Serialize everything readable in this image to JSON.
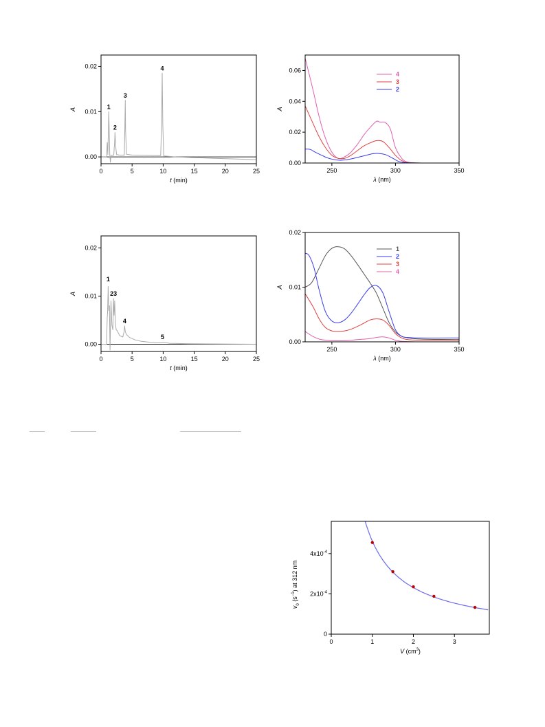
{
  "colors": {
    "axis": "#000000",
    "chromatogram": "#aaaaaa",
    "baseline": "#222222",
    "pink": "#e060b0",
    "red": "#e04040",
    "blue": "#3a3aee",
    "grey": "#555555",
    "fit": "#6b6bee",
    "marker": "#c00000"
  },
  "chart_data": [
    {
      "type": "line",
      "id": "chromatogram-top",
      "xlabel_var": "t",
      "xlabel_unit": "(min)",
      "ylabel": "A",
      "xlim": [
        0,
        25
      ],
      "ylim": [
        -0.0015,
        0.0225
      ],
      "xticks": [
        "0",
        "5",
        "10",
        "15",
        "20",
        "25"
      ],
      "yticks": [
        "0.00",
        "0.01",
        "0.02"
      ],
      "peaks": [
        {
          "label": "1",
          "t": 1.25,
          "A": 0.01
        },
        {
          "label": "2",
          "t": 2.25,
          "A": 0.0054
        },
        {
          "label": "3",
          "t": 3.9,
          "A": 0.0125
        },
        {
          "label": "4",
          "t": 9.85,
          "A": 0.0185
        }
      ],
      "series": [
        {
          "values_x": [
            0.0,
            0.9,
            1.0,
            1.1,
            1.25,
            1.4,
            1.5,
            1.6,
            2.05,
            2.2,
            2.25,
            2.35,
            2.5,
            3.0,
            3.75,
            3.85,
            3.9,
            3.95,
            4.1,
            5.0,
            9.6,
            9.75,
            9.85,
            9.95,
            10.1,
            12.0,
            18.0,
            25.0
          ],
          "values_y": [
            0.0,
            0.0,
            0.0032,
            0.0005,
            0.01,
            0.0006,
            -0.0012,
            0.0003,
            0.0004,
            0.0035,
            0.0054,
            0.0025,
            0.0005,
            0.0004,
            0.0004,
            0.008,
            0.0125,
            0.006,
            0.0006,
            0.0004,
            0.0003,
            0.007,
            0.0185,
            0.007,
            0.0002,
            0.0,
            -0.0003,
            -0.0006
          ]
        }
      ]
    },
    {
      "type": "line",
      "id": "spectra-top",
      "xlabel_var": "λ",
      "xlabel_unit": "(nm)",
      "ylabel": "A",
      "xlim": [
        229,
        350
      ],
      "ylim": [
        0,
        0.07
      ],
      "xticks": [
        "250",
        "300",
        "350"
      ],
      "yticks": [
        "0.00",
        "0.02",
        "0.04",
        "0.06"
      ],
      "legend": [
        "4",
        "3",
        "2"
      ],
      "series": [
        {
          "name": "4",
          "color": "pink",
          "x": [
            229,
            235,
            240,
            245,
            250,
            255,
            260,
            265,
            270,
            275,
            280,
            285,
            288,
            292,
            296,
            300,
            305,
            310,
            320,
            350
          ],
          "y": [
            0.068,
            0.048,
            0.03,
            0.016,
            0.007,
            0.003,
            0.004,
            0.007,
            0.012,
            0.018,
            0.023,
            0.027,
            0.0265,
            0.0262,
            0.022,
            0.01,
            0.003,
            0.0005,
            0.0,
            0.0
          ]
        },
        {
          "name": "3",
          "color": "red",
          "x": [
            229,
            235,
            240,
            245,
            250,
            255,
            260,
            265,
            270,
            275,
            280,
            285,
            290,
            295,
            300,
            305,
            310,
            320,
            350
          ],
          "y": [
            0.037,
            0.026,
            0.017,
            0.01,
            0.005,
            0.003,
            0.003,
            0.005,
            0.008,
            0.011,
            0.013,
            0.0145,
            0.014,
            0.01,
            0.005,
            0.0015,
            0.0003,
            0.0,
            0.0
          ]
        },
        {
          "name": "2",
          "color": "blue",
          "x": [
            229,
            233,
            237,
            242,
            247,
            252,
            257,
            262,
            267,
            272,
            277,
            282,
            287,
            292,
            297,
            302,
            307,
            320,
            350
          ],
          "y": [
            0.009,
            0.0088,
            0.007,
            0.005,
            0.0032,
            0.0022,
            0.0018,
            0.0022,
            0.003,
            0.004,
            0.005,
            0.006,
            0.0062,
            0.0055,
            0.0035,
            0.0012,
            0.0003,
            0.0,
            0.0
          ]
        }
      ]
    },
    {
      "type": "line",
      "id": "chromatogram-bottom",
      "xlabel_var": "t",
      "xlabel_unit": "(min)",
      "ylabel": "A",
      "xlim": [
        0,
        25
      ],
      "ylim": [
        -0.0015,
        0.0225
      ],
      "xticks": [
        "0",
        "5",
        "10",
        "15",
        "20",
        "25"
      ],
      "yticks": [
        "0.00",
        "0.01",
        "0.02"
      ],
      "peaks": [
        {
          "label": "1",
          "t": 1.15,
          "A": 0.0125
        },
        {
          "label": "23",
          "t": 2.0,
          "A": 0.0095
        },
        {
          "label": "4",
          "t": 3.8,
          "A": 0.0038
        },
        {
          "label": "5",
          "t": 9.9,
          "A": 0.0005
        }
      ],
      "series": [
        {
          "values_x": [
            0.0,
            0.9,
            1.0,
            1.05,
            1.15,
            1.25,
            1.35,
            1.45,
            1.6,
            1.75,
            1.9,
            2.0,
            2.1,
            2.2,
            2.3,
            2.45,
            2.6,
            3.0,
            3.5,
            3.7,
            3.8,
            3.9,
            4.1,
            4.6,
            5.5,
            6.5,
            8.0,
            9.5,
            10.0,
            11.0,
            14.0,
            25.0
          ],
          "values_y": [
            0.0,
            0.0,
            0.0055,
            0.0065,
            0.012,
            0.007,
            0.008,
            -0.0012,
            0.009,
            0.004,
            0.003,
            0.0095,
            0.006,
            0.009,
            0.0045,
            0.003,
            0.0028,
            0.0018,
            0.0015,
            0.0025,
            0.0038,
            0.0026,
            0.002,
            0.0014,
            0.0009,
            0.0006,
            0.0004,
            0.0003,
            0.0004,
            0.0002,
            0.0001,
            0.0
          ]
        }
      ]
    },
    {
      "type": "line",
      "id": "spectra-bottom",
      "xlabel_var": "λ",
      "xlabel_unit": "(nm)",
      "ylabel": "A",
      "xlim": [
        229,
        350
      ],
      "ylim": [
        0,
        0.02
      ],
      "xticks": [
        "250",
        "300",
        "350"
      ],
      "yticks": [
        "0.00",
        "0.01",
        "0.02"
      ],
      "legend": [
        "1",
        "2",
        "3",
        "4"
      ],
      "series": [
        {
          "name": "1",
          "color": "grey",
          "x": [
            229,
            234,
            240,
            245,
            250,
            255,
            260,
            265,
            270,
            275,
            280,
            285,
            290,
            295,
            300,
            305,
            310,
            320,
            350
          ],
          "y": [
            0.01,
            0.0108,
            0.0135,
            0.0158,
            0.0171,
            0.0174,
            0.017,
            0.0158,
            0.0142,
            0.0125,
            0.0108,
            0.0089,
            0.0062,
            0.0035,
            0.0018,
            0.001,
            0.0007,
            0.0005,
            0.0004
          ]
        },
        {
          "name": "2",
          "color": "blue",
          "x": [
            229,
            232,
            236,
            240,
            245,
            250,
            255,
            260,
            265,
            270,
            275,
            280,
            285,
            290,
            295,
            300,
            305,
            310,
            320,
            350
          ],
          "y": [
            0.0162,
            0.0158,
            0.0135,
            0.0095,
            0.0055,
            0.0038,
            0.0035,
            0.004,
            0.0052,
            0.0068,
            0.0085,
            0.0099,
            0.0103,
            0.009,
            0.0055,
            0.0022,
            0.001,
            0.0008,
            0.0007,
            0.0007
          ]
        },
        {
          "name": "3",
          "color": "red",
          "x": [
            229,
            235,
            240,
            245,
            250,
            255,
            260,
            265,
            270,
            275,
            280,
            285,
            290,
            295,
            300,
            305,
            310,
            320,
            350
          ],
          "y": [
            0.0088,
            0.0065,
            0.0042,
            0.0026,
            0.002,
            0.0019,
            0.002,
            0.0023,
            0.0028,
            0.0034,
            0.004,
            0.0042,
            0.004,
            0.003,
            0.0015,
            0.0007,
            0.0004,
            0.0003,
            0.0003
          ]
        },
        {
          "name": "4",
          "color": "pink",
          "x": [
            229,
            235,
            240,
            245,
            250,
            260,
            270,
            280,
            285,
            290,
            295,
            300,
            305,
            320,
            350
          ],
          "y": [
            0.0019,
            0.001,
            0.0005,
            0.0003,
            0.0002,
            0.0002,
            0.0004,
            0.0006,
            0.0008,
            0.0009,
            0.0007,
            0.0003,
            0.0001,
            0.0,
            0.0
          ]
        }
      ]
    },
    {
      "type": "scatter",
      "id": "rate-vs-volume",
      "xlabel_var": "V",
      "xlabel_unit": "(cm",
      "xlabel_sup": "3",
      "xlabel_close": ")",
      "ylabel_var": "v",
      "ylabel_sub": "0",
      "ylabel_mid": " (s",
      "ylabel_sup": "−1",
      "ylabel_tail": ") at 312 nm",
      "xlim": [
        0,
        3.85
      ],
      "ylim": [
        0,
        0.00056
      ],
      "xticks": [
        "0",
        "1",
        "2",
        "3"
      ],
      "yticks": [
        {
          "value": 0,
          "mantissa": "0",
          "exp": ""
        },
        {
          "value": 0.0002,
          "mantissa": "2x10",
          "exp": "-4"
        },
        {
          "value": 0.0004,
          "mantissa": "4x10",
          "exp": "-4"
        }
      ],
      "points": [
        {
          "x": 1.0,
          "y": 0.000455
        },
        {
          "x": 1.5,
          "y": 0.00031
        },
        {
          "x": 2.0,
          "y": 0.000235
        },
        {
          "x": 2.5,
          "y": 0.000188
        },
        {
          "x": 3.5,
          "y": 0.000133
        }
      ],
      "fit": {
        "type": "inverse",
        "k": 0.000462,
        "x_from": 0.82,
        "x_to": 3.85
      }
    }
  ]
}
